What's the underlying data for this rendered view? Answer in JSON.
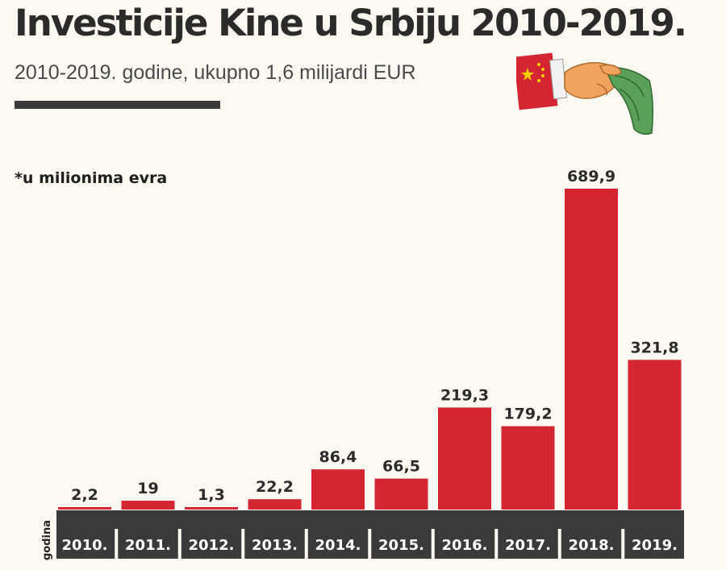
{
  "header": {
    "title": "Investicije Kine u Srbiju 2010-2019.",
    "subtitle": "2010-2019. godine, ukupno 1,6 milijardi EUR"
  },
  "note": "*u milionima evra",
  "icons": {
    "illustration": "china-flag-hand-money-icon"
  },
  "colors": {
    "bar": "#d42532",
    "axis_band": "#3a3a3a",
    "text_dark": "#2b2b2b",
    "background": "#fbf9f2"
  },
  "chart_data": {
    "type": "bar",
    "categories": [
      "2010.",
      "2011.",
      "2012.",
      "2013.",
      "2014.",
      "2015.",
      "2016.",
      "2017.",
      "2018.",
      "2019."
    ],
    "values": [
      2.2,
      19,
      1.3,
      22.2,
      86.4,
      66.5,
      219.3,
      179.2,
      689.9,
      321.8
    ],
    "value_labels": [
      "2,2",
      "19",
      "1,3",
      "22,2",
      "86,4",
      "66,5",
      "219,3",
      "179,2",
      "689,9",
      "321,8"
    ],
    "xlabel": "godina",
    "ylabel": "",
    "grid": false,
    "legend": "none"
  }
}
